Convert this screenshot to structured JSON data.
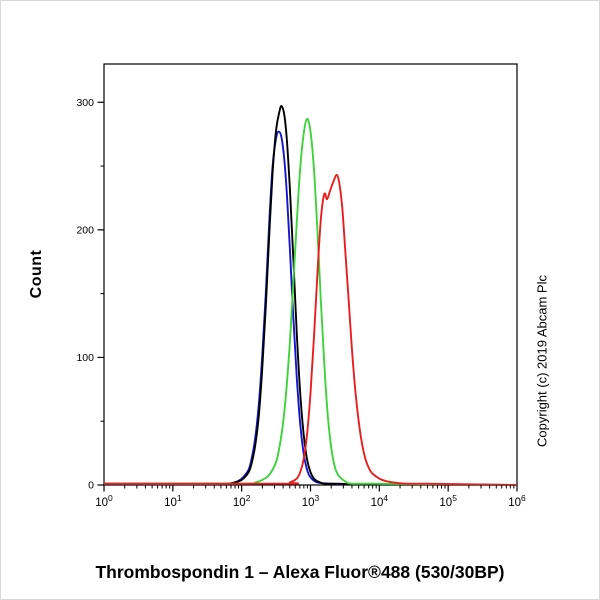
{
  "copyright": "Copyright (c) 2019 Abcam Plc",
  "chart_data": {
    "type": "line",
    "title": "Thrombospondin 1 – Alexa Fluor®488 (530/30BP)",
    "xlabel": "",
    "ylabel": "Count",
    "x_scale": "log10",
    "xlim_log10": [
      0,
      6
    ],
    "ylim": [
      0,
      330
    ],
    "grid": false,
    "legend_position": "none",
    "y_major_ticks": [
      0,
      100,
      200,
      300
    ],
    "y_minor_step": 50,
    "x_major_tick_exponents": [
      0,
      1,
      2,
      3,
      4,
      5,
      6
    ],
    "x_tick_base": "10",
    "x_minor_ticks": "log-decade-subdivisions",
    "series": [
      {
        "name": "blue-curve",
        "color": "#1515cd",
        "peak": {
          "x_log10": 2.54,
          "count": 277
        },
        "points_log10x_count": [
          [
            0,
            0
          ],
          [
            1.5,
            0
          ],
          [
            1.8,
            1
          ],
          [
            1.9,
            2
          ],
          [
            2.0,
            5
          ],
          [
            2.1,
            12
          ],
          [
            2.15,
            22
          ],
          [
            2.2,
            38
          ],
          [
            2.25,
            64
          ],
          [
            2.3,
            102
          ],
          [
            2.35,
            150
          ],
          [
            2.4,
            205
          ],
          [
            2.45,
            250
          ],
          [
            2.5,
            272
          ],
          [
            2.54,
            277
          ],
          [
            2.58,
            272
          ],
          [
            2.62,
            255
          ],
          [
            2.66,
            225
          ],
          [
            2.7,
            185
          ],
          [
            2.75,
            132
          ],
          [
            2.8,
            85
          ],
          [
            2.85,
            48
          ],
          [
            2.9,
            25
          ],
          [
            2.95,
            12
          ],
          [
            3.0,
            6
          ],
          [
            3.1,
            2
          ],
          [
            3.3,
            1
          ],
          [
            3.6,
            0
          ]
        ]
      },
      {
        "name": "black-curve",
        "color": "#000000",
        "peak": {
          "x_log10": 2.58,
          "count": 297
        },
        "points_log10x_count": [
          [
            0,
            1
          ],
          [
            1.0,
            1
          ],
          [
            1.5,
            1
          ],
          [
            1.8,
            1
          ],
          [
            1.9,
            2
          ],
          [
            2.0,
            4
          ],
          [
            2.1,
            10
          ],
          [
            2.15,
            18
          ],
          [
            2.2,
            32
          ],
          [
            2.25,
            55
          ],
          [
            2.3,
            92
          ],
          [
            2.35,
            140
          ],
          [
            2.4,
            195
          ],
          [
            2.45,
            245
          ],
          [
            2.5,
            278
          ],
          [
            2.55,
            293
          ],
          [
            2.58,
            297
          ],
          [
            2.62,
            290
          ],
          [
            2.66,
            268
          ],
          [
            2.7,
            232
          ],
          [
            2.75,
            178
          ],
          [
            2.8,
            120
          ],
          [
            2.85,
            72
          ],
          [
            2.9,
            40
          ],
          [
            2.95,
            20
          ],
          [
            3.0,
            10
          ],
          [
            3.05,
            5
          ],
          [
            3.1,
            3
          ],
          [
            3.2,
            1
          ],
          [
            3.4,
            1
          ],
          [
            4.0,
            0
          ],
          [
            6.0,
            0
          ]
        ]
      },
      {
        "name": "green-curve",
        "color": "#3fd23c",
        "peak": {
          "x_log10": 2.95,
          "count": 287
        },
        "points_log10x_count": [
          [
            0,
            1
          ],
          [
            2.0,
            1
          ],
          [
            2.2,
            2
          ],
          [
            2.3,
            4
          ],
          [
            2.4,
            8
          ],
          [
            2.5,
            18
          ],
          [
            2.55,
            30
          ],
          [
            2.6,
            48
          ],
          [
            2.65,
            75
          ],
          [
            2.7,
            112
          ],
          [
            2.75,
            158
          ],
          [
            2.8,
            205
          ],
          [
            2.85,
            248
          ],
          [
            2.9,
            275
          ],
          [
            2.95,
            287
          ],
          [
            3.0,
            277
          ],
          [
            3.05,
            248
          ],
          [
            3.1,
            200
          ],
          [
            3.15,
            145
          ],
          [
            3.2,
            95
          ],
          [
            3.25,
            55
          ],
          [
            3.3,
            30
          ],
          [
            3.35,
            15
          ],
          [
            3.4,
            8
          ],
          [
            3.5,
            3
          ],
          [
            3.6,
            1
          ],
          [
            3.9,
            1
          ],
          [
            6.0,
            0
          ]
        ]
      },
      {
        "name": "red-curve",
        "color": "#e81e1e",
        "peak": {
          "x_log10": 3.38,
          "count": 243
        },
        "shoulder": {
          "x_log10": 3.2,
          "count": 228
        },
        "points_log10x_count": [
          [
            0,
            1
          ],
          [
            2.6,
            1
          ],
          [
            2.7,
            2
          ],
          [
            2.8,
            5
          ],
          [
            2.85,
            10
          ],
          [
            2.9,
            20
          ],
          [
            2.95,
            40
          ],
          [
            3.0,
            72
          ],
          [
            3.05,
            115
          ],
          [
            3.1,
            165
          ],
          [
            3.15,
            208
          ],
          [
            3.2,
            228
          ],
          [
            3.24,
            224
          ],
          [
            3.28,
            230
          ],
          [
            3.32,
            236
          ],
          [
            3.38,
            243
          ],
          [
            3.42,
            236
          ],
          [
            3.46,
            218
          ],
          [
            3.5,
            188
          ],
          [
            3.55,
            148
          ],
          [
            3.6,
            108
          ],
          [
            3.65,
            75
          ],
          [
            3.7,
            50
          ],
          [
            3.75,
            32
          ],
          [
            3.8,
            20
          ],
          [
            3.85,
            13
          ],
          [
            3.9,
            9
          ],
          [
            4.0,
            5
          ],
          [
            4.1,
            3
          ],
          [
            4.2,
            2
          ],
          [
            4.4,
            1
          ],
          [
            4.7,
            1
          ],
          [
            6.0,
            0
          ]
        ]
      }
    ]
  }
}
